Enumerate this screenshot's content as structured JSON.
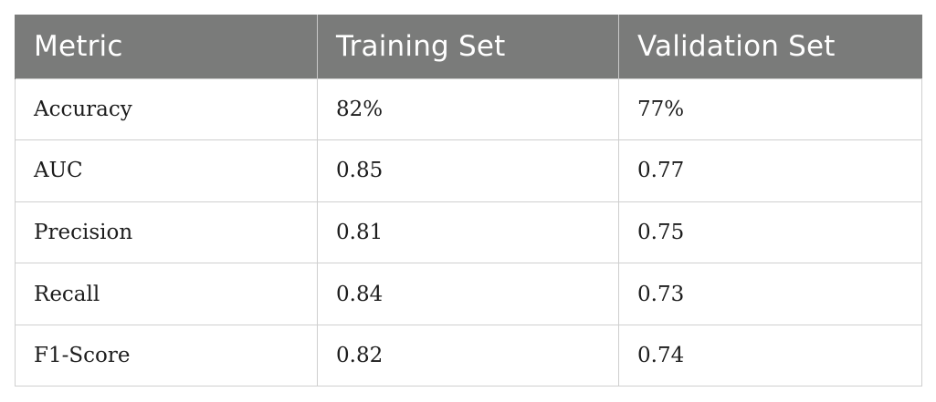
{
  "table": {
    "headers": [
      "Metric",
      "Training Set",
      "Validation Set"
    ],
    "rows": [
      [
        "Accuracy",
        "82%",
        "77%"
      ],
      [
        "AUC",
        "0.85",
        "0.77"
      ],
      [
        "Precision",
        "0.81",
        "0.75"
      ],
      [
        "Recall",
        "0.84",
        "0.73"
      ],
      [
        "F1-Score",
        "0.82",
        "0.74"
      ]
    ]
  }
}
